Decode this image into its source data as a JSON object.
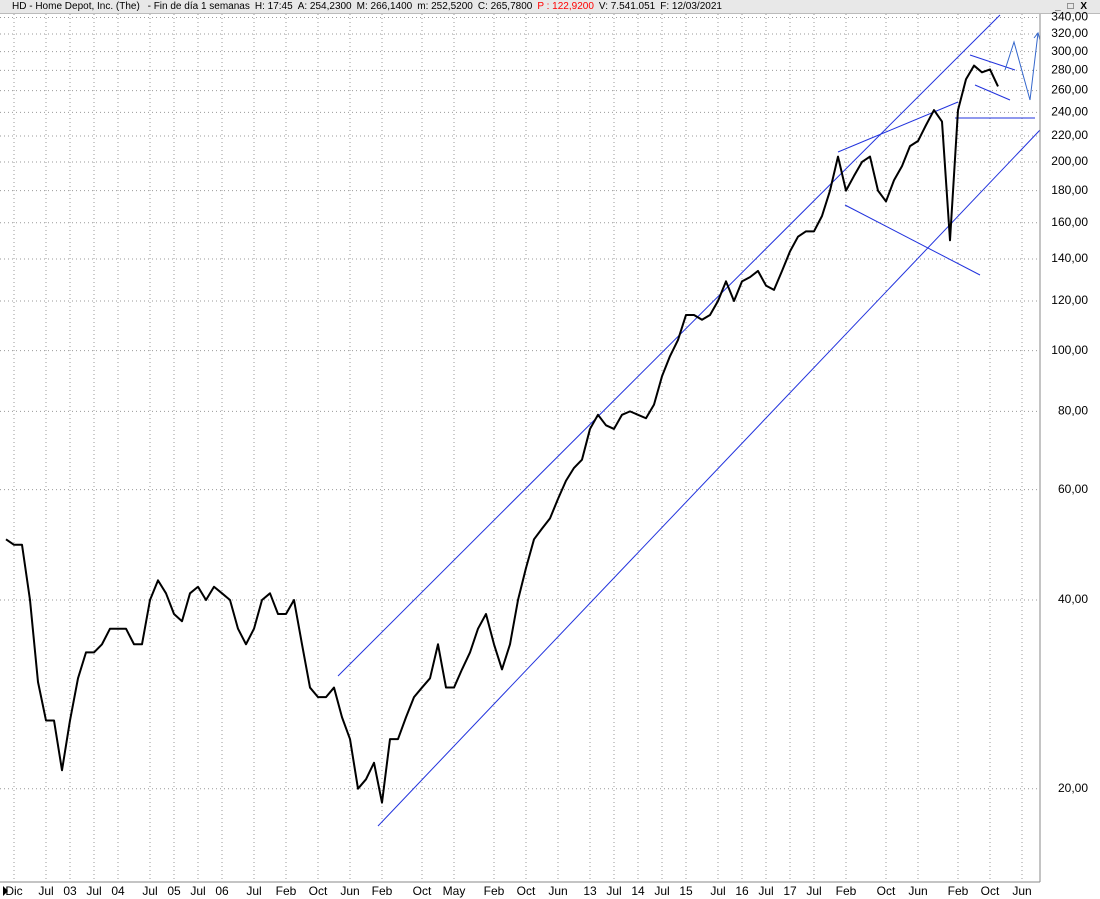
{
  "header": {
    "title": "HD - Home Depot, Inc. (The)",
    "fields": [
      {
        "text": "- Fin de día 1 semanas"
      },
      {
        "text": "H: 17:45"
      },
      {
        "text": "A: 254,2300"
      },
      {
        "text": "M: 266,1400"
      },
      {
        "text": "m: 252,5200"
      },
      {
        "text": "C: 265,7800"
      },
      {
        "text": "P : 122,9200",
        "color": "#ff0000"
      },
      {
        "text": "V: 7.541.051"
      },
      {
        "text": "F: 12/03/2021"
      }
    ]
  },
  "chart_data": {
    "type": "line",
    "log_scale": true,
    "grid": true,
    "color": "#000000",
    "categories": [
      null,
      "Dic",
      null,
      null,
      null,
      "Jul",
      null,
      null,
      "03",
      null,
      null,
      "Jul",
      null,
      null,
      "04",
      null,
      null,
      null,
      "Jul",
      null,
      null,
      "05",
      null,
      null,
      "Jul",
      null,
      null,
      "06",
      null,
      null,
      null,
      "Jul",
      null,
      null,
      null,
      "Feb",
      null,
      null,
      null,
      "Oct",
      null,
      null,
      null,
      "Jun",
      null,
      null,
      null,
      "Feb",
      null,
      null,
      null,
      null,
      "Oct",
      null,
      null,
      null,
      "May",
      null,
      null,
      null,
      null,
      "Feb",
      null,
      null,
      null,
      "Oct",
      null,
      null,
      null,
      "Jun",
      null,
      null,
      null,
      "13",
      null,
      null,
      "Jul",
      null,
      null,
      "14",
      null,
      null,
      "Jul",
      null,
      null,
      "15",
      null,
      null,
      null,
      "Jul",
      null,
      null,
      "16",
      null,
      null,
      "Jul",
      null,
      null,
      "17",
      null,
      null,
      "Jul",
      null,
      null,
      null,
      "Feb",
      null,
      null,
      null,
      null,
      "Oct",
      null,
      null,
      null,
      "Jun",
      null,
      null,
      null,
      null,
      "Feb",
      null,
      null,
      null,
      "Oct",
      null,
      null,
      null,
      "Jun"
    ],
    "values": [
      50,
      49,
      49,
      40,
      29.6,
      25.7,
      25.7,
      21.4,
      25.7,
      30,
      33,
      33,
      34,
      36,
      36,
      36,
      34,
      34,
      40,
      43,
      41,
      38,
      37,
      41,
      42,
      40,
      42,
      41,
      40,
      36,
      34,
      36,
      40,
      41,
      38,
      38,
      40,
      34,
      29,
      28,
      28,
      29,
      26,
      24,
      20,
      20.7,
      22,
      19,
      24,
      24,
      26,
      28,
      29,
      30,
      34,
      29,
      29,
      31,
      33,
      36,
      38,
      34,
      31,
      34,
      40,
      45,
      50,
      52,
      54,
      58,
      62,
      65,
      67,
      75,
      79,
      76,
      75,
      79,
      80,
      79,
      78,
      82,
      91,
      98,
      104,
      114,
      114,
      112,
      114,
      120,
      129,
      120,
      129,
      131,
      134,
      127,
      125,
      134,
      144,
      152,
      155,
      155,
      164,
      180,
      204,
      180,
      190,
      200,
      204,
      180,
      173,
      187,
      197,
      212,
      216,
      229,
      242,
      232,
      150,
      242,
      271,
      285,
      278,
      281,
      264,
      null,
      null,
      null
    ],
    "ylim": [
      14.3,
      347
    ],
    "yticks": [
      {
        "value": 20,
        "label": "20,00"
      },
      {
        "value": 40,
        "label": "40,00"
      },
      {
        "value": 60,
        "label": "60,00"
      },
      {
        "value": 80,
        "label": "80,00"
      },
      {
        "value": 100,
        "label": "100,00"
      },
      {
        "value": 120,
        "label": "120,00"
      },
      {
        "value": 140,
        "label": "140,00"
      },
      {
        "value": 160,
        "label": "160,00"
      },
      {
        "value": 180,
        "label": "180,00"
      },
      {
        "value": 200,
        "label": "200,00"
      },
      {
        "value": 220,
        "label": "220,00"
      },
      {
        "value": 240,
        "label": "240,00"
      },
      {
        "value": 260,
        "label": "260,00"
      },
      {
        "value": 280,
        "label": "280,00"
      },
      {
        "value": 300,
        "label": "300,00"
      },
      {
        "value": 320,
        "label": "320,00"
      },
      {
        "value": 340,
        "label": "340,00"
      }
    ]
  }
}
